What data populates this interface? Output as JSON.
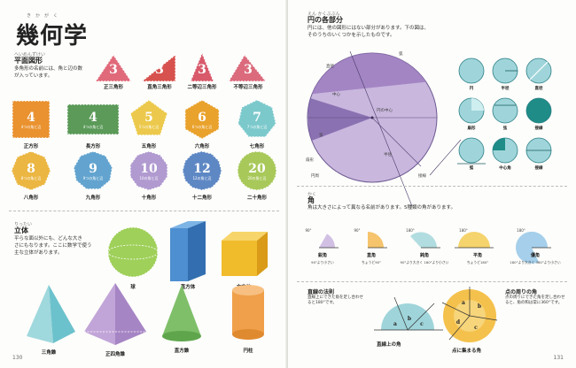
{
  "book": {
    "page_left": "130",
    "page_right": "131"
  },
  "left": {
    "title": "幾何学",
    "title_ruby": "きかがく",
    "plane": {
      "heading": "平面図形",
      "heading_ruby": "へいめんずけい",
      "text": [
        "多角形の名前には、角と辺の数",
        "が入っています。"
      ],
      "shapes": [
        {
          "num": "3",
          "sub": "",
          "label": "正三角形",
          "color": "#e06a7a"
        },
        {
          "num": "3",
          "sub": "",
          "label": "直角三角形",
          "color": "#d7524e"
        },
        {
          "num": "3",
          "sub": "",
          "label": "二等辺三角形",
          "color": "#d85a6b"
        },
        {
          "num": "3",
          "sub": "",
          "label": "不等辺三角形",
          "color": "#db6b7c"
        },
        {
          "num": "4",
          "sub": "4つの角と辺",
          "label": "正方形",
          "color": "#e9922f"
        },
        {
          "num": "4",
          "sub": "4つの角と辺",
          "label": "長方形",
          "color": "#5b9a58"
        },
        {
          "num": "5",
          "sub": "5つの角と辺",
          "label": "五角形",
          "color": "#ecc94c"
        },
        {
          "num": "6",
          "sub": "6つの角と辺",
          "label": "六角形",
          "color": "#e9a22c"
        },
        {
          "num": "7",
          "sub": "7つの角と辺",
          "label": "七角形",
          "color": "#7cc9cc"
        },
        {
          "num": "8",
          "sub": "8つの角と辺",
          "label": "八角形",
          "color": "#ebb642"
        },
        {
          "num": "9",
          "sub": "9つの角と辺",
          "label": "九角形",
          "color": "#62a4cf"
        },
        {
          "num": "10",
          "sub": "10の角と辺",
          "label": "十角形",
          "color": "#b09ad0"
        },
        {
          "num": "12",
          "sub": "12の角と辺",
          "label": "十二角形",
          "color": "#5e88c4"
        },
        {
          "num": "20",
          "sub": "20の角と辺",
          "label": "二十角形",
          "color": "#a8c95a"
        }
      ]
    },
    "solid": {
      "heading": "立体",
      "heading_ruby": "りったい",
      "text": [
        "平らな面以外にも、どんな大き",
        "さにもなります。ここに数学で使う",
        "主な立体があります。"
      ],
      "shapes": [
        {
          "label": "球",
          "color": "#9fd05a"
        },
        {
          "label": "直方体",
          "color": "#4d8fd0"
        },
        {
          "label": "立方体",
          "color": "#f0bc2c"
        },
        {
          "label": "三角錐",
          "color": "#6cc2cc"
        },
        {
          "label": "正四角錐",
          "color": "#c2a5d8"
        },
        {
          "label": "直方錐",
          "color": "#7fbf6a"
        },
        {
          "label": "円柱",
          "color": "#f0a04a"
        }
      ]
    }
  },
  "right": {
    "circle": {
      "heading": "円の各部分",
      "heading_ruby": "えん かくぶぶん",
      "text": [
        "円には、他の図形にはない部分があります。下の図は、",
        "そのうちのいくつかを示したものです。"
      ],
      "parts": [
        "弧",
        "直径",
        "中心",
        "円の中心",
        "半径",
        "弦",
        "円周",
        "接線",
        "扇形"
      ],
      "mini_labels": [
        "円",
        "半径",
        "直径",
        "扇形",
        "弦",
        "接線",
        "弧",
        "中心角",
        "接線"
      ]
    },
    "angle": {
      "heading": "角",
      "heading_ruby": "かく",
      "text": "角は大きさによって異なる名前があります。5種類の角があります。",
      "types": [
        {
          "name": "鋭角",
          "desc": "90°より小さい",
          "deg": "90°"
        },
        {
          "name": "直角",
          "desc": "ちょうど90°",
          "deg": "90°"
        },
        {
          "name": "鈍角",
          "desc": "90°より大きく 180°より小さい",
          "deg": "180°"
        },
        {
          "name": "平角",
          "desc": "ちょうど180°",
          "deg": "180°"
        },
        {
          "name": "優角",
          "desc": "180°より大きく 360°より小さい",
          "deg": "180°"
        }
      ]
    },
    "rule1": {
      "heading": "直線の法則",
      "text": [
        "直線上にできた角を足し合わせ",
        "ると180°です。"
      ],
      "caption": "直線上の角",
      "abc": [
        "a",
        "b",
        "c"
      ]
    },
    "rule2": {
      "heading": "点の周りの角",
      "text": [
        "点の周りにできた角を足し合わせ",
        "ると、角の和は常に360°です。"
      ],
      "caption": "点に集まる角",
      "abcd": [
        "a",
        "b",
        "c",
        "d"
      ]
    }
  }
}
